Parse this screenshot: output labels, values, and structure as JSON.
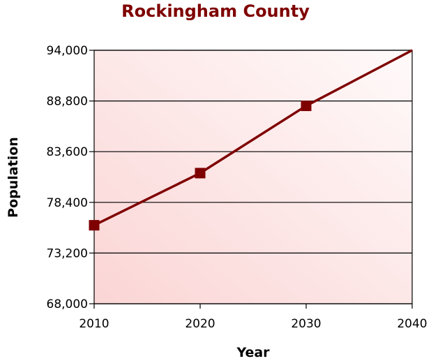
{
  "chart_data": {
    "type": "line",
    "title": "Rockingham County",
    "xlabel": "Year",
    "ylabel": "Population",
    "x_ticks": [
      "2010",
      "2020",
      "2030",
      "2040"
    ],
    "y_ticks": [
      "68,000",
      "73,200",
      "78,400",
      "83,600",
      "88,800",
      "94,000"
    ],
    "xlim": [
      2010,
      2040
    ],
    "ylim": [
      68000,
      94000
    ],
    "grid": "horizontal",
    "series": [
      {
        "color": "#7f0000",
        "points": [
          {
            "x": 2010,
            "y": 76050
          },
          {
            "x": 2020,
            "y": 81400
          },
          {
            "x": 2030,
            "y": 88300
          },
          {
            "x": 2040,
            "y": 94000
          }
        ],
        "markers": [
          2010,
          2020,
          2030
        ]
      }
    ],
    "colors": {
      "title": "#7f0000",
      "line": "#7f0000",
      "plot_fill_light": "#fffafa",
      "plot_fill_dark": "#fbd5d5"
    }
  }
}
